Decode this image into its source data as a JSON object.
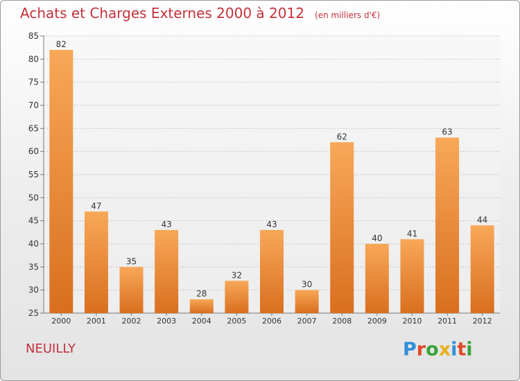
{
  "title": "Achats et Charges Externes 2000 à 2012",
  "subtitle": "(en milliers d'€)",
  "town": "NEUILLY",
  "logo": {
    "letters": [
      "P",
      "r",
      "o",
      "x",
      "i",
      "t",
      "i"
    ],
    "colors": [
      "#2f8fd6",
      "#e04a2a",
      "#3aa23a",
      "#e8b21a",
      "#2f8fd6",
      "#e04a2a",
      "#3aa23a"
    ]
  },
  "colors": {
    "title": "#c4303c",
    "bar_top": "#f7a858",
    "bar_bottom": "#d96f1e",
    "grid": "#c8c8c8"
  },
  "chart_data": {
    "type": "bar",
    "categories": [
      "2000",
      "2001",
      "2002",
      "2003",
      "2004",
      "2005",
      "2006",
      "2007",
      "2008",
      "2009",
      "2010",
      "2011",
      "2012"
    ],
    "values": [
      82,
      47,
      35,
      43,
      28,
      32,
      43,
      30,
      62,
      40,
      41,
      63,
      44
    ],
    "ylim": [
      25,
      85
    ],
    "yticks": [
      25,
      30,
      35,
      40,
      45,
      50,
      55,
      60,
      65,
      70,
      75,
      80,
      85
    ],
    "grid": true,
    "legend": "none"
  }
}
